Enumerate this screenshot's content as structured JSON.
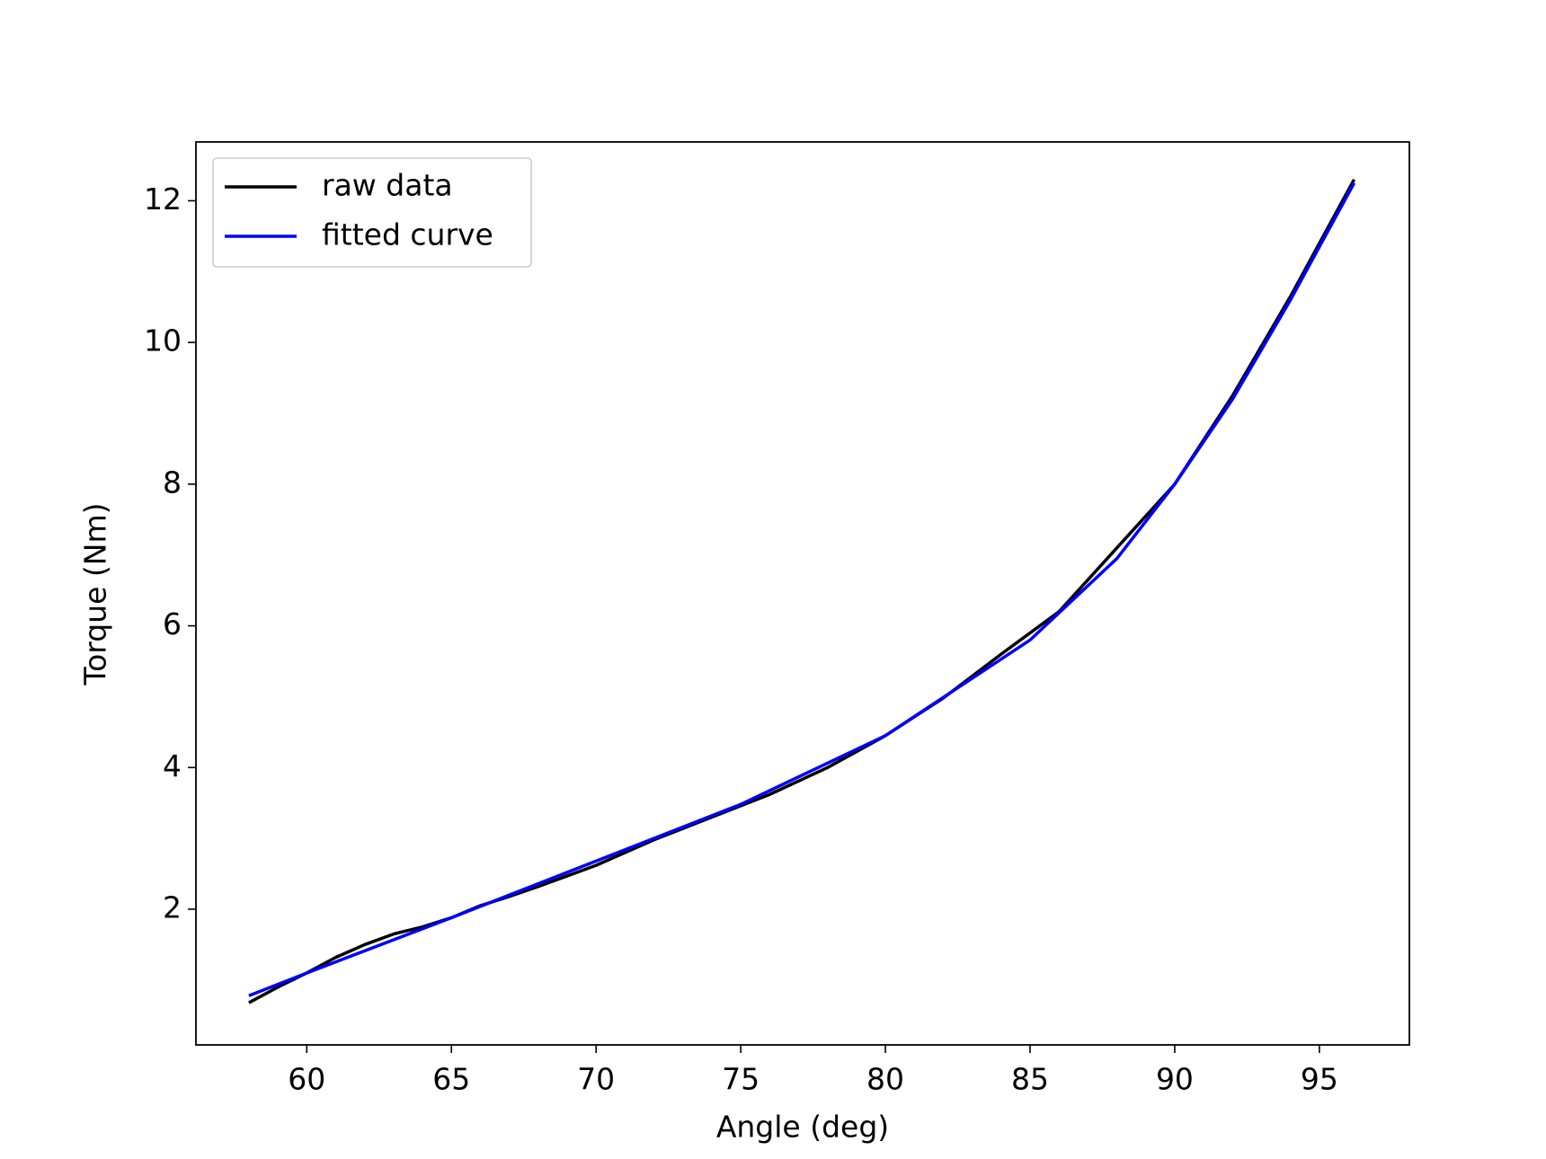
{
  "chart_data": {
    "type": "line",
    "x_label": "Angle (deg)",
    "y_label": "Torque (Nm)",
    "xlim": [
      56.17,
      98.11
    ],
    "xticks": [
      60,
      65,
      70,
      75,
      80,
      85,
      90,
      95
    ],
    "ylim": [
      0.085,
      12.83
    ],
    "yticks": [
      2,
      4,
      6,
      8,
      10,
      12
    ],
    "legend": "upper left",
    "grid": false,
    "series": [
      {
        "name": "raw data",
        "color": "#000000",
        "x": [
          58,
          59,
          60,
          61,
          62,
          63,
          64,
          65,
          66,
          67,
          68,
          69,
          70,
          72,
          74,
          76,
          78,
          80,
          82,
          84,
          86,
          88,
          90,
          92,
          94,
          96.2
        ],
        "values": [
          0.68,
          0.9,
          1.1,
          1.32,
          1.5,
          1.65,
          1.75,
          1.88,
          2.05,
          2.18,
          2.32,
          2.47,
          2.62,
          2.98,
          3.3,
          3.62,
          4.0,
          4.45,
          4.98,
          5.6,
          6.2,
          7.1,
          8.0,
          9.25,
          10.65,
          12.3
        ]
      },
      {
        "name": "fitted curve",
        "color": "#0000ff",
        "x": [
          58,
          60,
          65,
          70,
          75,
          80,
          85,
          88,
          90,
          92,
          94,
          96.2
        ],
        "values": [
          0.78,
          1.1,
          1.88,
          2.68,
          3.48,
          4.45,
          5.8,
          6.95,
          8.0,
          9.2,
          10.6,
          12.25
        ]
      }
    ]
  }
}
